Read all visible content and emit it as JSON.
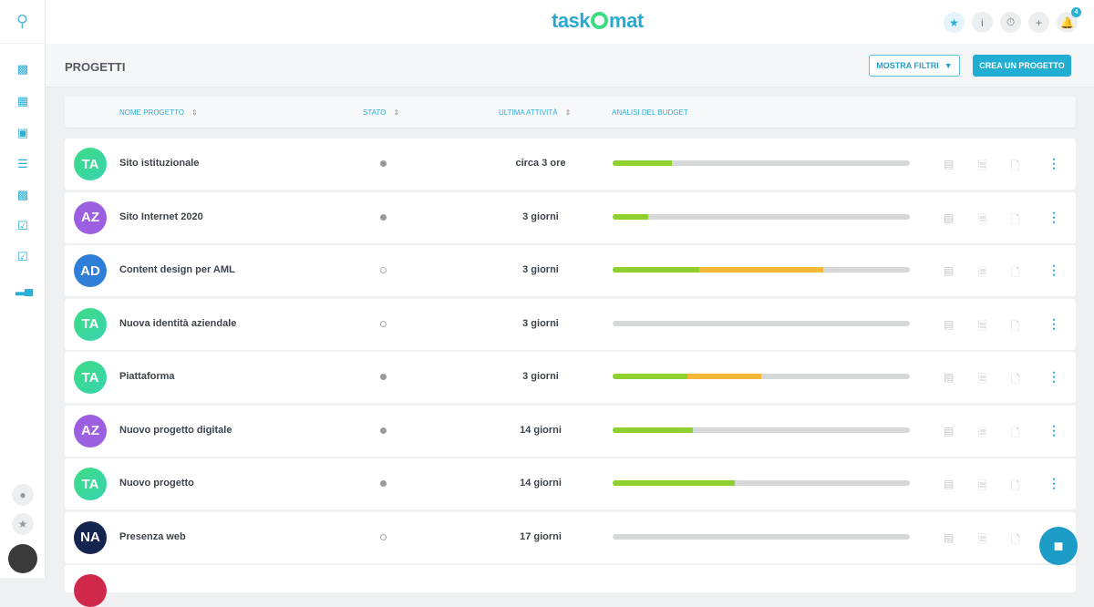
{
  "app": {
    "logo": "taskOmat",
    "notification_count": "4"
  },
  "topbar_icons": [
    "star-icon",
    "info-icon",
    "timer-icon",
    "plus-icon",
    "bell-icon"
  ],
  "sidebar": {
    "items": [
      "dashboard-icon",
      "calendar-icon",
      "gift-icon",
      "list-icon",
      "blocks-icon",
      "edit-check-icon",
      "checklist-icon",
      "chart-icon"
    ],
    "bottom": [
      "team-icon",
      "trophy-icon",
      "user-avatar"
    ]
  },
  "page": {
    "title": "PROGETTI",
    "filter_label": "MOSTRA FILTRI",
    "create_label": "CREA UN PROGETTO"
  },
  "table": {
    "headers": {
      "name": "NOME PROGETTO",
      "status": "STATO",
      "last_activity": "ULTIMA ATTIVITÀ",
      "budget": "ANALISI DEL BUDGET"
    },
    "rows": [
      {
        "initials": "TA",
        "avatar_color": "#3fd98f",
        "name": "Sito istituzionale",
        "status": "filled",
        "last_activity": "circa 3 ore",
        "budget_green": 20,
        "budget_orange": 0
      },
      {
        "initials": "AZ",
        "avatar_color": "#9b5fe0",
        "name": "Sito Internet 2020",
        "status": "filled",
        "last_activity": "3 giorni",
        "budget_green": 12,
        "budget_orange": 0
      },
      {
        "initials": "AD",
        "avatar_color": "#2f7fd8",
        "name": "Content design per AML",
        "status": "empty",
        "last_activity": "3 giorni",
        "budget_green": 29,
        "budget_orange": 42
      },
      {
        "initials": "TA",
        "avatar_color": "#3fd98f",
        "name": "Nuova identità aziendale",
        "status": "empty",
        "last_activity": "3 giorni",
        "budget_green": 0,
        "budget_orange": 0
      },
      {
        "initials": "TA",
        "avatar_color": "#3fd98f",
        "name": "Piattaforma",
        "status": "filled",
        "last_activity": "3 giorni",
        "budget_green": 25,
        "budget_orange": 25
      },
      {
        "initials": "AZ",
        "avatar_color": "#9b5fe0",
        "name": "Nuovo progetto digitale",
        "status": "filled",
        "last_activity": "14 giorni",
        "budget_green": 27,
        "budget_orange": 0
      },
      {
        "initials": "TA",
        "avatar_color": "#3fd98f",
        "name": "Nuovo progetto",
        "status": "filled",
        "last_activity": "14 giorni",
        "budget_green": 41,
        "budget_orange": 0
      },
      {
        "initials": "NA",
        "avatar_color": "#14254f",
        "name": "Presenza web",
        "status": "empty",
        "last_activity": "17 giorni",
        "budget_green": 0,
        "budget_orange": 0
      }
    ]
  },
  "colors": {
    "accent": "#22aed3",
    "budget_green": "#8ed12e",
    "budget_orange": "#f9b73a"
  }
}
